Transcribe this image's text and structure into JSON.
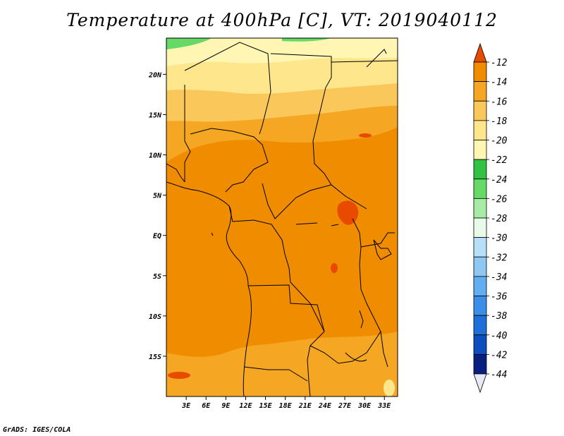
{
  "title": "Temperature at 400hPa [C], VT: 2019040112",
  "footer": "GrADS: IGES/COLA",
  "map": {
    "lat_labels": [
      "20N",
      "15N",
      "10N",
      "5N",
      "EQ",
      "5S",
      "10S",
      "15S"
    ],
    "lat_values": [
      20,
      15,
      10,
      5,
      0,
      -5,
      -10,
      -15
    ],
    "lon_labels": [
      "3E",
      "6E",
      "9E",
      "12E",
      "15E",
      "18E",
      "21E",
      "24E",
      "27E",
      "30E",
      "33E"
    ],
    "lon_values": [
      3,
      6,
      9,
      12,
      15,
      18,
      21,
      24,
      27,
      30,
      33
    ],
    "lon_range": [
      0,
      35
    ],
    "lat_range": [
      -20,
      24.5
    ]
  },
  "colorbar": {
    "labels": [
      "-12",
      "-14",
      "-16",
      "-18",
      "-20",
      "-22",
      "-24",
      "-26",
      "-28",
      "-30",
      "-32",
      "-34",
      "-36",
      "-38",
      "-40",
      "-42",
      "-44"
    ],
    "colors": [
      "#e84a00",
      "#f08c00",
      "#f5a623",
      "#fac85a",
      "#fde68c",
      "#fff6b4",
      "#33c244",
      "#66d966",
      "#a6eba6",
      "#e8fbe8",
      "#b8dff8",
      "#8ec7f2",
      "#62aef0",
      "#3c8fe8",
      "#1e6fd9",
      "#0d4dbf",
      "#0a1e80",
      "#e8e8f8"
    ]
  }
}
